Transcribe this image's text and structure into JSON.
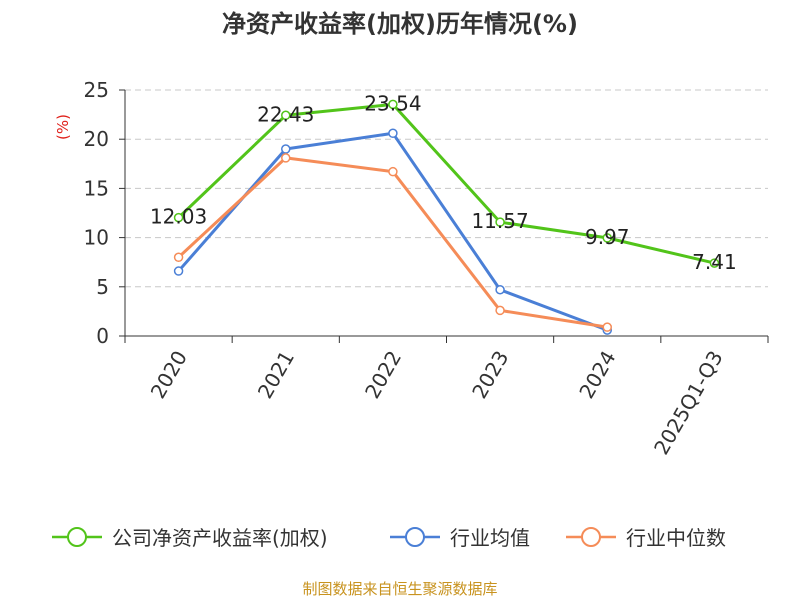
{
  "chart_data": {
    "type": "line",
    "title": "净资产收益率(加权)历年情况(%)",
    "ylabel": "(%)",
    "xlabel": "",
    "ylim": [
      0,
      25
    ],
    "yticks": [
      0,
      5,
      10,
      15,
      20,
      25
    ],
    "grid": true,
    "legend_position": "bottom",
    "categories": [
      "2020",
      "2021",
      "2022",
      "2023",
      "2024",
      "2025Q1-Q3"
    ],
    "series": [
      {
        "name": "公司净资产收益率(加权)",
        "color": "#52c41a",
        "values": [
          12.03,
          22.43,
          23.54,
          11.57,
          9.97,
          7.41
        ],
        "labels": [
          "12.03",
          "22.43",
          "23.54",
          "11.57",
          "9.97",
          "7.41"
        ]
      },
      {
        "name": "行业均值",
        "color": "#4a7fd6",
        "values": [
          6.6,
          19.0,
          20.6,
          4.7,
          0.6,
          null
        ]
      },
      {
        "name": "行业中位数",
        "color": "#f58c58",
        "values": [
          8.0,
          18.1,
          16.7,
          2.6,
          0.9,
          null
        ]
      }
    ]
  },
  "footer": {
    "source": "制图数据来自恒生聚源数据库"
  }
}
